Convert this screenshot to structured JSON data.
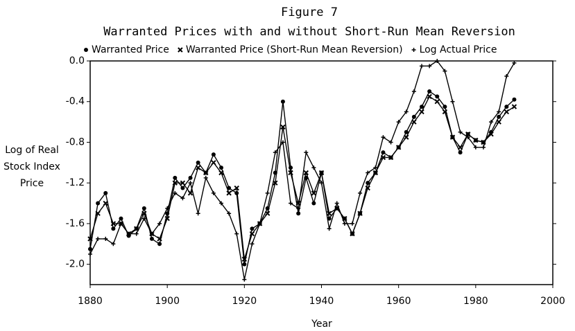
{
  "chart_data": {
    "type": "line",
    "title": "Figure 7",
    "subtitle": "Warranted Prices with and without Short-Run Mean Reversion",
    "x_label": "Year",
    "y_label": "Log of Real Stock Index Price",
    "x": [
      1880,
      1882,
      1884,
      1886,
      1888,
      1890,
      1892,
      1894,
      1896,
      1898,
      1900,
      1902,
      1904,
      1906,
      1908,
      1910,
      1912,
      1914,
      1916,
      1918,
      1920,
      1922,
      1924,
      1926,
      1928,
      1930,
      1932,
      1934,
      1936,
      1938,
      1940,
      1942,
      1944,
      1946,
      1948,
      1950,
      1952,
      1954,
      1956,
      1958,
      1960,
      1962,
      1964,
      1966,
      1968,
      1970,
      1972,
      1974,
      1976,
      1978,
      1980,
      1982,
      1984,
      1986,
      1988,
      1990
    ],
    "series": [
      {
        "name": "Warranted Price",
        "color": "#000000",
        "marker": "circle",
        "values": [
          -1.85,
          -1.4,
          -1.3,
          -1.65,
          -1.55,
          -1.72,
          -1.65,
          -1.45,
          -1.75,
          -1.8,
          -1.5,
          -1.15,
          -1.25,
          -1.15,
          -1.0,
          -1.1,
          -0.92,
          -1.05,
          -1.25,
          -1.3,
          -2.0,
          -1.65,
          -1.6,
          -1.45,
          -1.1,
          -0.4,
          -1.05,
          -1.5,
          -1.15,
          -1.4,
          -1.1,
          -1.55,
          -1.45,
          -1.55,
          -1.7,
          -1.5,
          -1.2,
          -1.1,
          -0.9,
          -0.95,
          -0.85,
          -0.7,
          -0.55,
          -0.45,
          -0.3,
          -0.35,
          -0.45,
          -0.75,
          -0.9,
          -0.72,
          -0.78,
          -0.8,
          -0.7,
          -0.55,
          -0.45,
          -0.38
        ]
      },
      {
        "name": "Warranted Price (Short-Run Mean Reversion)",
        "color": "#000000",
        "marker": "x",
        "values": [
          -1.75,
          -1.5,
          -1.4,
          -1.6,
          -1.6,
          -1.7,
          -1.65,
          -1.5,
          -1.7,
          -1.75,
          -1.55,
          -1.2,
          -1.2,
          -1.3,
          -1.05,
          -1.1,
          -1.0,
          -1.1,
          -1.3,
          -1.25,
          -1.95,
          -1.7,
          -1.6,
          -1.5,
          -1.2,
          -0.65,
          -1.1,
          -1.4,
          -1.1,
          -1.3,
          -1.1,
          -1.5,
          -1.45,
          -1.55,
          -1.7,
          -1.5,
          -1.25,
          -1.1,
          -0.95,
          -0.95,
          -0.85,
          -0.75,
          -0.6,
          -0.5,
          -0.35,
          -0.4,
          -0.5,
          -0.75,
          -0.85,
          -0.72,
          -0.78,
          -0.8,
          -0.72,
          -0.6,
          -0.5,
          -0.45
        ]
      },
      {
        "name": "Log Actual Price",
        "color": "#000000",
        "marker": "plus",
        "values": [
          -1.9,
          -1.75,
          -1.75,
          -1.8,
          -1.6,
          -1.7,
          -1.7,
          -1.55,
          -1.7,
          -1.6,
          -1.45,
          -1.3,
          -1.35,
          -1.2,
          -1.5,
          -1.15,
          -1.3,
          -1.4,
          -1.5,
          -1.7,
          -2.15,
          -1.8,
          -1.6,
          -1.3,
          -0.9,
          -0.8,
          -1.4,
          -1.45,
          -0.9,
          -1.05,
          -1.2,
          -1.65,
          -1.4,
          -1.6,
          -1.6,
          -1.3,
          -1.1,
          -1.05,
          -0.75,
          -0.8,
          -0.6,
          -0.5,
          -0.3,
          -0.05,
          -0.05,
          0.0,
          -0.1,
          -0.4,
          -0.7,
          -0.75,
          -0.85,
          -0.85,
          -0.6,
          -0.5,
          -0.15,
          -0.02
        ]
      }
    ],
    "xlim": [
      1880,
      2000
    ],
    "xticks": [
      1880,
      1900,
      1920,
      1940,
      1960,
      1980,
      2000
    ],
    "ylim": [
      -2.2,
      0.0
    ],
    "yticks": [
      {
        "value": 0,
        "label": "0.0"
      },
      -0.4,
      -0.8,
      -1.2,
      -1.6,
      {
        "value": -2,
        "label": "-2.0"
      }
    ],
    "legend": "top"
  }
}
